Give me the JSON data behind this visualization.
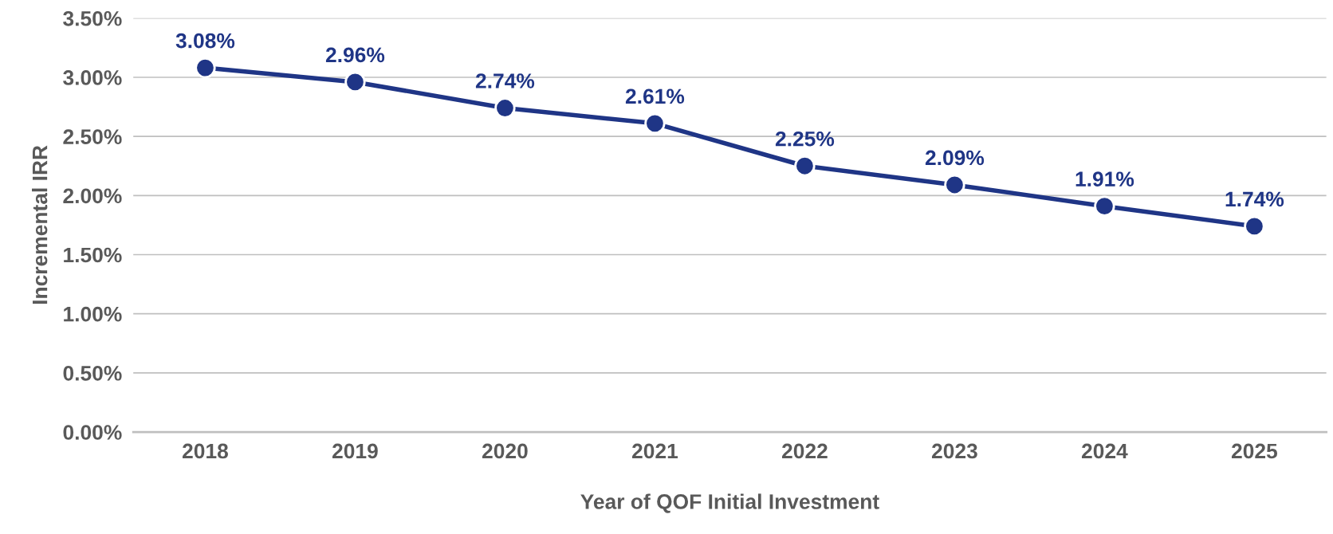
{
  "chart_data": {
    "type": "line",
    "xlabel": "Year of QOF Initial Investment",
    "ylabel": "Incremental IRR",
    "categories": [
      "2018",
      "2019",
      "2020",
      "2021",
      "2022",
      "2023",
      "2024",
      "2025"
    ],
    "series": [
      {
        "color": "#1f3586",
        "values": [
          3.08,
          2.96,
          2.74,
          2.61,
          2.25,
          2.09,
          1.91,
          1.74
        ],
        "value_labels": [
          "3.08%",
          "2.96%",
          "2.74%",
          "2.61%",
          "2.25%",
          "2.09%",
          "1.91%",
          "1.74%"
        ]
      }
    ],
    "ylim": [
      0,
      3.5
    ],
    "yticks": [
      {
        "value": 0,
        "label": "0.00%"
      },
      {
        "value": 0.5,
        "label": "0.50%"
      },
      {
        "value": 1,
        "label": "1.00%"
      },
      {
        "value": 1.5,
        "label": "1.50%"
      },
      {
        "value": 2,
        "label": "2.00%"
      },
      {
        "value": 2.5,
        "label": "2.50%"
      },
      {
        "value": 3,
        "label": "3.00%"
      },
      {
        "value": 3.5,
        "label": "3.50%"
      }
    ],
    "grid": "y",
    "marker": "circle",
    "line_style": "solid",
    "legend": false
  }
}
